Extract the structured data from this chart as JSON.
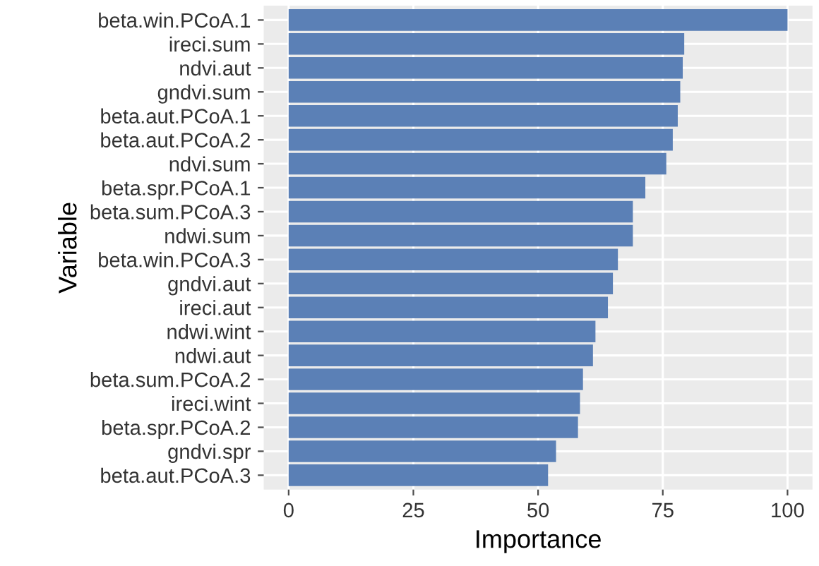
{
  "chart_data": {
    "type": "bar",
    "orientation": "horizontal",
    "xlabel": "Importance",
    "ylabel": "Variable",
    "categories": [
      "beta.win.PCoA.1",
      "ireci.sum",
      "ndvi.aut",
      "gndvi.sum",
      "beta.aut.PCoA.1",
      "beta.aut.PCoA.2",
      "ndvi.sum",
      "beta.spr.PCoA.1",
      "beta.sum.PCoA.3",
      "ndwi.sum",
      "beta.win.PCoA.3",
      "gndvi.aut",
      "ireci.aut",
      "ndwi.wint",
      "ndwi.aut",
      "beta.sum.PCoA.2",
      "ireci.wint",
      "beta.spr.PCoA.2",
      "gndvi.spr",
      "beta.aut.PCoA.3"
    ],
    "values": [
      100,
      79.3,
      79,
      78.5,
      78,
      77,
      75.7,
      71.5,
      69,
      69,
      66,
      65,
      64,
      61.5,
      61,
      59,
      58.4,
      58,
      53.6,
      52
    ],
    "color": "#5b80b6",
    "xlim": [
      -5,
      105
    ],
    "xticks": [
      0,
      25,
      50,
      75,
      100
    ],
    "grid": true
  }
}
